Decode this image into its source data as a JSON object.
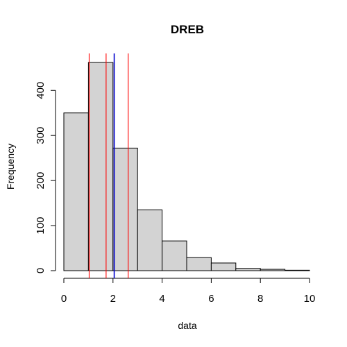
{
  "chart_data": {
    "type": "bar",
    "title": "DREB",
    "xlabel": "data",
    "ylabel": "Frequency",
    "bins": [
      {
        "x0": 0,
        "x1": 1,
        "count": 350
      },
      {
        "x0": 1,
        "x1": 2,
        "count": 462
      },
      {
        "x0": 2,
        "x1": 3,
        "count": 272
      },
      {
        "x0": 3,
        "x1": 4,
        "count": 135
      },
      {
        "x0": 4,
        "x1": 5,
        "count": 66
      },
      {
        "x0": 5,
        "x1": 6,
        "count": 29
      },
      {
        "x0": 6,
        "x1": 7,
        "count": 17
      },
      {
        "x0": 7,
        "x1": 8,
        "count": 5
      },
      {
        "x0": 8,
        "x1": 9,
        "count": 3
      },
      {
        "x0": 9,
        "x1": 10,
        "count": 1
      }
    ],
    "xticks": [
      0,
      2,
      4,
      6,
      8,
      10
    ],
    "yticks": [
      0,
      100,
      200,
      300,
      400
    ],
    "xlim": [
      0,
      10
    ],
    "ylim": [
      0,
      462
    ],
    "bar_fill": "#d3d3d3",
    "reference_lines": [
      {
        "x": 1.03,
        "color": "#ff0000"
      },
      {
        "x": 1.72,
        "color": "#ff0000"
      },
      {
        "x": 2.05,
        "color": "#0000cc"
      },
      {
        "x": 2.62,
        "color": "#ff0000"
      }
    ],
    "grid": false
  }
}
